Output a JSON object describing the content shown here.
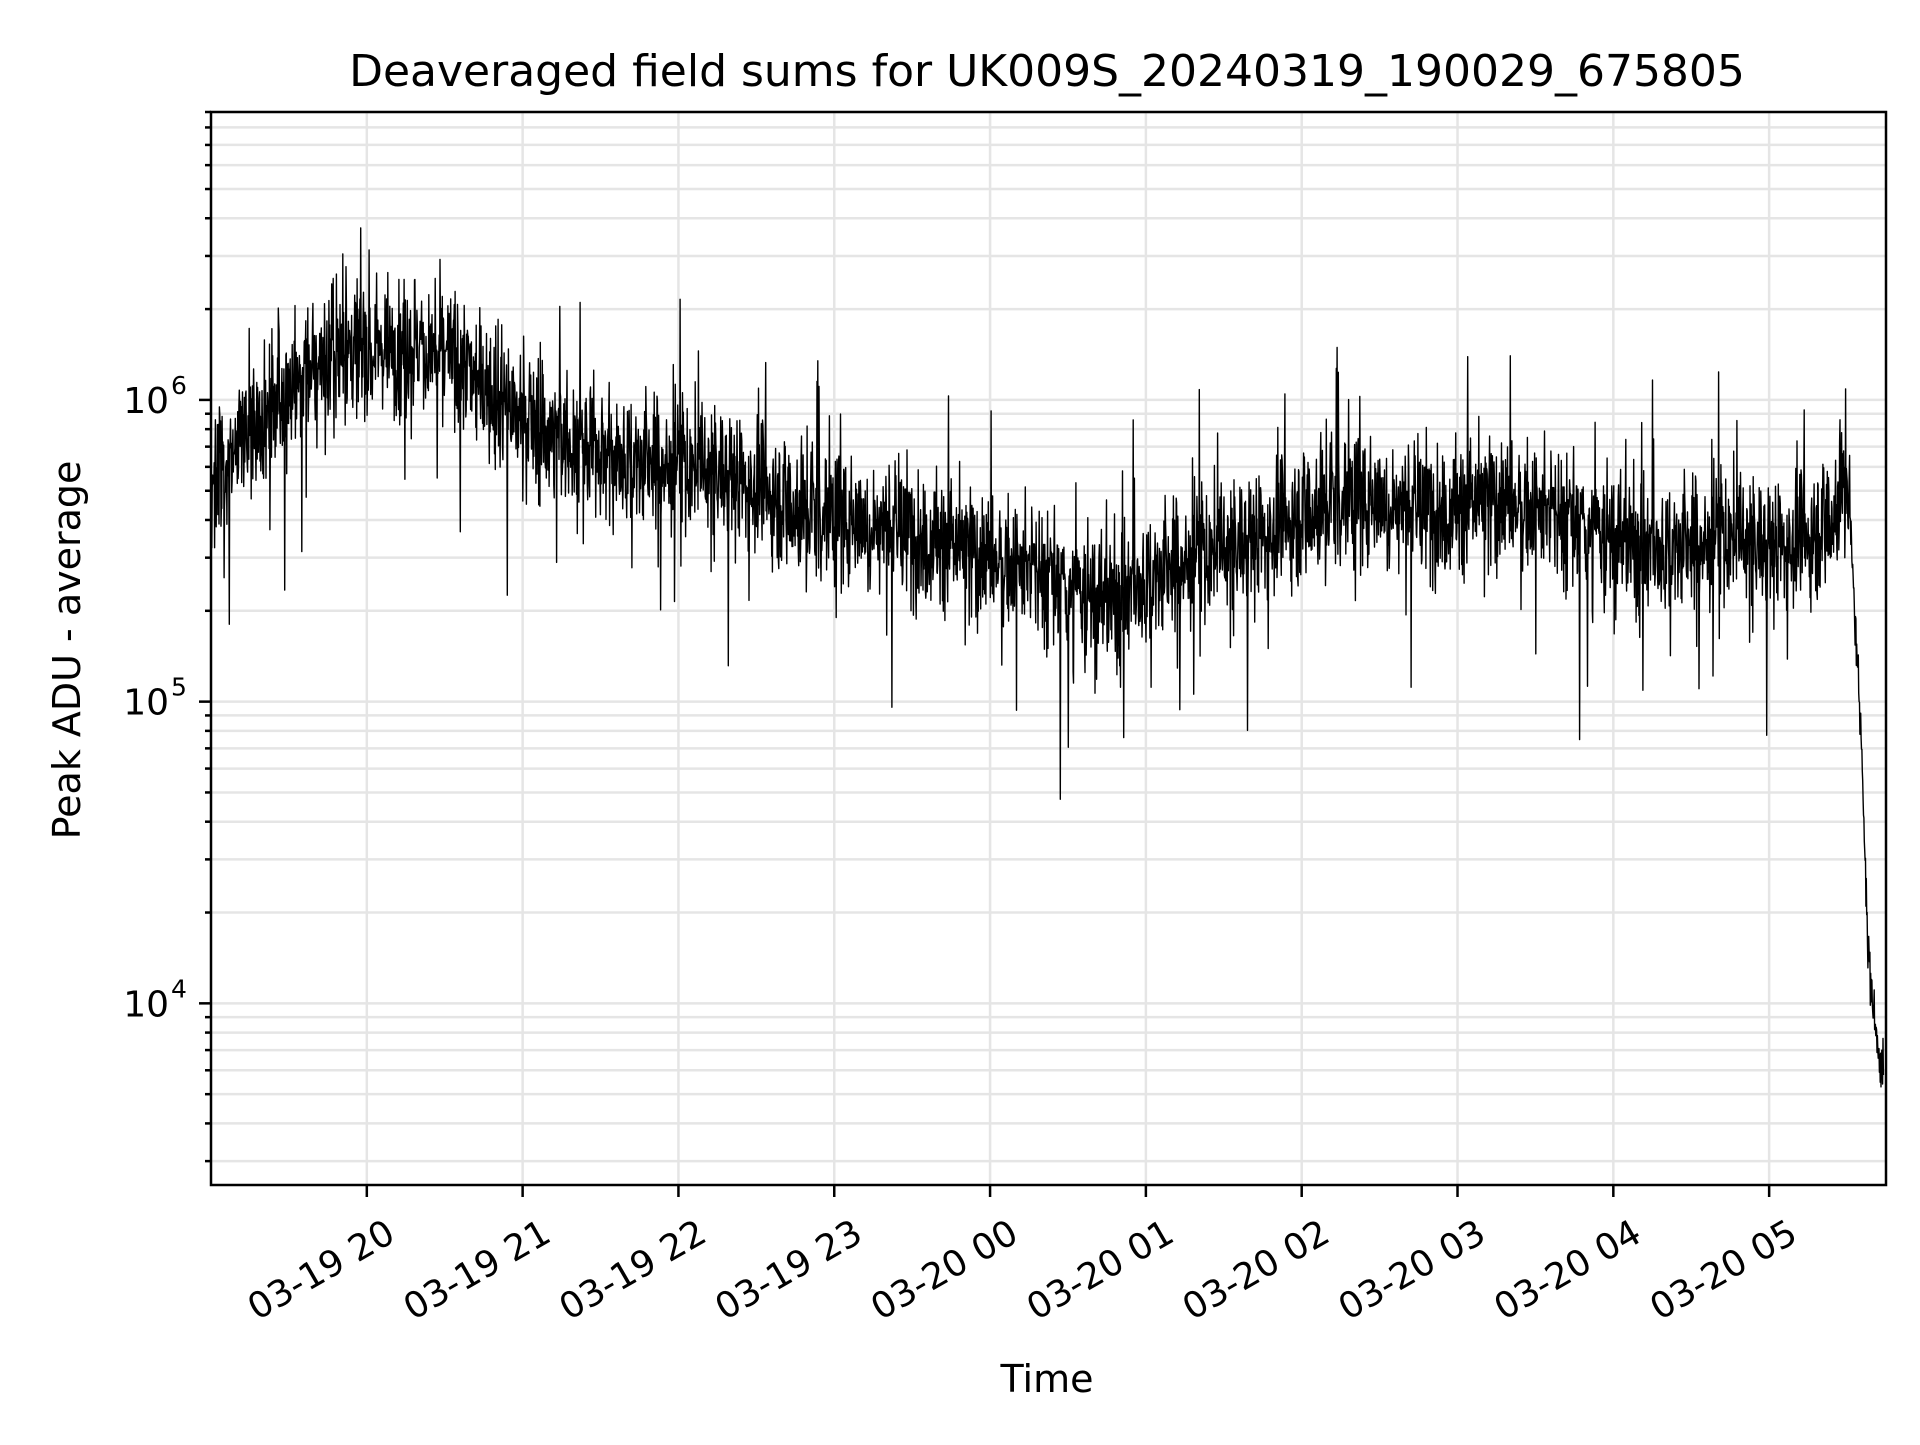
{
  "chart_data": {
    "type": "line",
    "title": "Deaveraged field sums for UK009S_20240319_190029_675805",
    "xlabel": "Time",
    "ylabel": "Peak ADU - average",
    "y_scale": "log",
    "ylim": [
      2500,
      9000000
    ],
    "xlim": [
      "2024-03-19 19:00",
      "2024-03-20 05:45"
    ],
    "x_ticks": [
      "2024-03-19 20:00",
      "2024-03-19 21:00",
      "2024-03-19 22:00",
      "2024-03-19 23:00",
      "2024-03-20 00:00",
      "2024-03-20 01:00",
      "2024-03-20 02:00",
      "2024-03-20 03:00",
      "2024-03-20 04:00",
      "2024-03-20 05:00"
    ],
    "x_tick_labels": [
      "03-19 20",
      "03-19 21",
      "03-19 22",
      "03-19 23",
      "03-20 00",
      "03-20 01",
      "03-20 02",
      "03-20 03",
      "03-20 04",
      "03-20 05"
    ],
    "y_ticks": [
      10000,
      100000,
      1000000
    ],
    "y_tick_labels": [
      {
        "base": "10",
        "exp": "4"
      },
      {
        "base": "10",
        "exp": "5"
      },
      {
        "base": "10",
        "exp": "6"
      }
    ],
    "grid": "both-major-and-minor",
    "legend": "none",
    "colors": {
      "line": "#000000",
      "grid": "#e5e5e5"
    },
    "series": [
      {
        "x": [
          "2024-03-19 19:00",
          "2024-03-19 19:15",
          "2024-03-19 19:30",
          "2024-03-19 19:45",
          "2024-03-19 20:00",
          "2024-03-19 20:15",
          "2024-03-19 20:30",
          "2024-03-19 20:45",
          "2024-03-19 21:00",
          "2024-03-19 21:15",
          "2024-03-19 21:30",
          "2024-03-19 21:45",
          "2024-03-19 22:00",
          "2024-03-19 22:15",
          "2024-03-19 22:30",
          "2024-03-19 22:45",
          "2024-03-19 23:00",
          "2024-03-19 23:15",
          "2024-03-19 23:30",
          "2024-03-19 23:45",
          "2024-03-20 00:00",
          "2024-03-20 00:15",
          "2024-03-20 00:30",
          "2024-03-20 00:45",
          "2024-03-20 01:00",
          "2024-03-20 01:15",
          "2024-03-20 01:30",
          "2024-03-20 01:45",
          "2024-03-20 02:00",
          "2024-03-20 02:15",
          "2024-03-20 02:30",
          "2024-03-20 02:45",
          "2024-03-20 03:00",
          "2024-03-20 03:15",
          "2024-03-20 03:30",
          "2024-03-20 03:45",
          "2024-03-20 04:00",
          "2024-03-20 04:15",
          "2024-03-20 04:30",
          "2024-03-20 04:45",
          "2024-03-20 05:00",
          "2024-03-20 05:15",
          "2024-03-20 05:25",
          "2024-03-20 05:30",
          "2024-03-20 05:33",
          "2024-03-20 05:36",
          "2024-03-20 05:38",
          "2024-03-20 05:41",
          "2024-03-20 05:44"
        ],
        "y": [
          550000,
          800000,
          1100000,
          1400000,
          1500000,
          1550000,
          1400000,
          1150000,
          850000,
          750000,
          700000,
          620000,
          600000,
          580000,
          520000,
          440000,
          420000,
          390000,
          360000,
          330000,
          300000,
          270000,
          230000,
          210000,
          250000,
          290000,
          320000,
          360000,
          420000,
          480000,
          470000,
          430000,
          440000,
          470000,
          430000,
          380000,
          340000,
          320000,
          330000,
          350000,
          330000,
          350000,
          420000,
          600000,
          200000,
          60000,
          15000,
          8000,
          6000
        ]
      }
    ]
  }
}
